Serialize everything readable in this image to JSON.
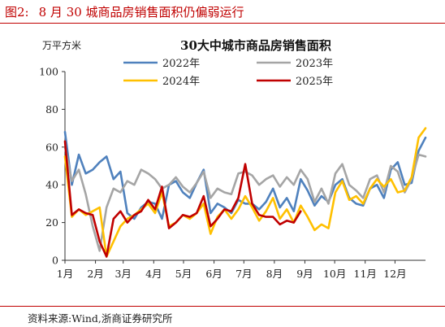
{
  "figure": {
    "label": "图2:",
    "caption": "8 月 30 城商品房销售面积仍偏弱运行",
    "source": "资料来源:Wind,浙商证券研究所"
  },
  "chart_data": {
    "type": "line",
    "title": "30大中城市商品房销售面积",
    "unit": "万平方米",
    "ylim": [
      0,
      100
    ],
    "yticks": [
      0,
      20,
      40,
      60,
      80,
      100
    ],
    "xlim": [
      1,
      53
    ],
    "x_unit": "week of year",
    "xticks": [
      {
        "label": "1月",
        "x": 1
      },
      {
        "label": "2月",
        "x": 5.4
      },
      {
        "label": "3月",
        "x": 9.4
      },
      {
        "label": "4月",
        "x": 13.8
      },
      {
        "label": "5月",
        "x": 18.1
      },
      {
        "label": "6月",
        "x": 22.5
      },
      {
        "label": "7月",
        "x": 26.8
      },
      {
        "label": "8月",
        "x": 31.2
      },
      {
        "label": "9月",
        "x": 35.6
      },
      {
        "label": "10月",
        "x": 39.9
      },
      {
        "label": "11月",
        "x": 44.3
      },
      {
        "label": "12月",
        "x": 48.6
      }
    ],
    "grid": false,
    "legend": "top-center",
    "series": [
      {
        "name": "2022年",
        "color": "#4f81bd",
        "values": [
          68,
          40,
          56,
          46,
          48,
          52,
          55,
          43,
          47,
          25,
          22,
          28,
          31,
          30,
          22,
          40,
          42,
          36,
          33,
          41,
          48,
          25,
          30,
          28,
          25,
          32,
          30,
          30,
          27,
          31,
          38,
          28,
          33,
          26,
          43,
          37,
          29,
          34,
          31,
          40,
          43,
          33,
          30,
          29,
          38,
          40,
          33,
          48,
          52,
          40,
          41,
          58,
          65
        ]
      },
      {
        "name": "2023年",
        "color": "#a5a5a5",
        "values": [
          60,
          42,
          48,
          35,
          18,
          5,
          28,
          38,
          36,
          42,
          40,
          48,
          46,
          43,
          38,
          40,
          44,
          39,
          36,
          41,
          47,
          33,
          38,
          36,
          35,
          46,
          47,
          45,
          40,
          43,
          45,
          39,
          44,
          40,
          48,
          43,
          31,
          38,
          30,
          46,
          51,
          40,
          37,
          33,
          43,
          45,
          36,
          50,
          47,
          36,
          43,
          56,
          55
        ]
      },
      {
        "name": "2024年",
        "color": "#ffc000",
        "values": [
          55,
          23,
          27,
          24,
          26,
          28,
          2,
          10,
          18,
          22,
          24,
          27,
          30,
          25,
          36,
          18,
          20,
          24,
          22,
          25,
          30,
          14,
          23,
          27,
          22,
          27,
          34,
          28,
          21,
          26,
          33,
          22,
          27,
          20,
          29,
          23,
          16,
          19,
          17,
          36,
          42,
          32,
          34,
          30,
          38,
          43,
          39,
          43,
          36,
          37,
          44,
          65,
          70
        ]
      },
      {
        "name": "2025年",
        "color": "#c00000",
        "values": [
          63,
          24,
          27,
          25,
          24,
          10,
          2,
          22,
          26,
          20,
          24,
          26,
          32,
          27,
          39,
          17,
          20,
          24,
          23,
          25,
          34,
          18,
          22,
          27,
          26,
          33,
          51,
          30,
          24,
          23,
          23,
          19,
          21,
          20,
          26
        ]
      }
    ]
  }
}
